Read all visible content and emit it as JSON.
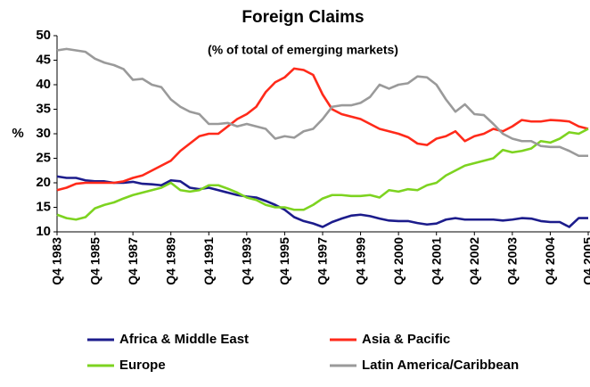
{
  "chart_data": {
    "type": "line",
    "title": "Foreign Claims",
    "subtitle": "(% of total of emerging markets)",
    "y_label": "%",
    "categories": [
      "Q4 1983",
      null,
      null,
      null,
      "Q4 1985",
      null,
      null,
      null,
      "Q4 1987",
      null,
      null,
      null,
      "Q4 1989",
      null,
      null,
      null,
      "Q4 1991",
      null,
      null,
      null,
      "Q4 1993",
      null,
      null,
      null,
      "Q4 1995",
      null,
      null,
      null,
      "Q4 1997",
      null,
      null,
      null,
      "Q4 1999",
      null,
      null,
      null,
      "Q4 2000",
      null,
      null,
      null,
      "Q4 2001",
      null,
      null,
      null,
      "Q4 2002",
      null,
      null,
      null,
      "Q4 2003",
      null,
      null,
      null,
      "Q4 2004",
      null,
      null,
      null,
      "Q4 2005"
    ],
    "ylim": [
      10,
      50
    ],
    "yticks": [
      10,
      15,
      20,
      25,
      30,
      35,
      40,
      45,
      50
    ],
    "grid": false,
    "legend": "bottom",
    "series": [
      {
        "name": "Africa & Middle East",
        "color": "#1c1c8c",
        "values": [
          21.3,
          21,
          21,
          20.5,
          20.3,
          20.3,
          20,
          20,
          20.2,
          19.8,
          19.7,
          19.5,
          20.5,
          20.3,
          19,
          18.7,
          19,
          18.5,
          18,
          17.5,
          17.2,
          17,
          16.3,
          15.5,
          14.5,
          13,
          12.2,
          11.7,
          11,
          12,
          12.7,
          13.3,
          13.5,
          13.2,
          12.7,
          12.3,
          12.2,
          12.2,
          11.8,
          11.5,
          11.7,
          12.5,
          12.8,
          12.5,
          12.5,
          12.5,
          12.5,
          12.3,
          12.5,
          12.8,
          12.7,
          12.2,
          12,
          12,
          11,
          12.8,
          12.8
        ]
      },
      {
        "name": "Asia & Pacific",
        "color": "#ff2a1a",
        "values": [
          18.5,
          19,
          19.8,
          20,
          20,
          20,
          20,
          20.3,
          21,
          21.5,
          22.5,
          23.5,
          24.5,
          26.5,
          28,
          29.5,
          30,
          30,
          31.5,
          33,
          34,
          35.5,
          38.5,
          40.5,
          41.5,
          43.3,
          43,
          42,
          38,
          35,
          34,
          33.5,
          33,
          32,
          31,
          30.5,
          30,
          29.3,
          28,
          27.7,
          29,
          29.5,
          30.5,
          28.5,
          29.5,
          30,
          31,
          30.5,
          31.5,
          32.8,
          32.5,
          32.5,
          32.8,
          32.7,
          32.5,
          31.5,
          31
        ]
      },
      {
        "name": "Europe",
        "color": "#7dd320",
        "values": [
          13.5,
          12.8,
          12.5,
          13,
          14.8,
          15.5,
          16,
          16.8,
          17.5,
          18,
          18.5,
          19,
          20,
          18.5,
          18.2,
          18.5,
          19.5,
          19.5,
          18.8,
          18,
          17,
          16.5,
          15.5,
          15,
          15,
          14.5,
          14.5,
          15.5,
          16.8,
          17.5,
          17.5,
          17.3,
          17.3,
          17.5,
          17,
          18.5,
          18.2,
          18.7,
          18.5,
          19.5,
          20,
          21.5,
          22.5,
          23.5,
          24,
          24.5,
          25,
          26.7,
          26.2,
          26.5,
          27,
          28.5,
          28.2,
          29,
          30.3,
          30,
          31
        ]
      },
      {
        "name": "Latin America/Caribbean",
        "color": "#9a9a9a",
        "values": [
          47,
          47.3,
          47,
          46.7,
          45.3,
          44.5,
          44,
          43.2,
          41,
          41.2,
          40,
          39.5,
          37,
          35.5,
          34.5,
          34,
          32,
          32,
          32.2,
          31.5,
          32,
          31.5,
          31,
          29,
          29.5,
          29.2,
          30.5,
          31,
          33,
          35.5,
          35.8,
          35.8,
          36.3,
          37.5,
          40,
          39.2,
          40,
          40.3,
          41.7,
          41.5,
          40,
          37,
          34.5,
          36,
          34,
          33.8,
          32,
          30,
          29,
          28.5,
          28.5,
          27.5,
          27.3,
          27.3,
          26.5,
          25.5,
          25.5
        ]
      }
    ]
  }
}
